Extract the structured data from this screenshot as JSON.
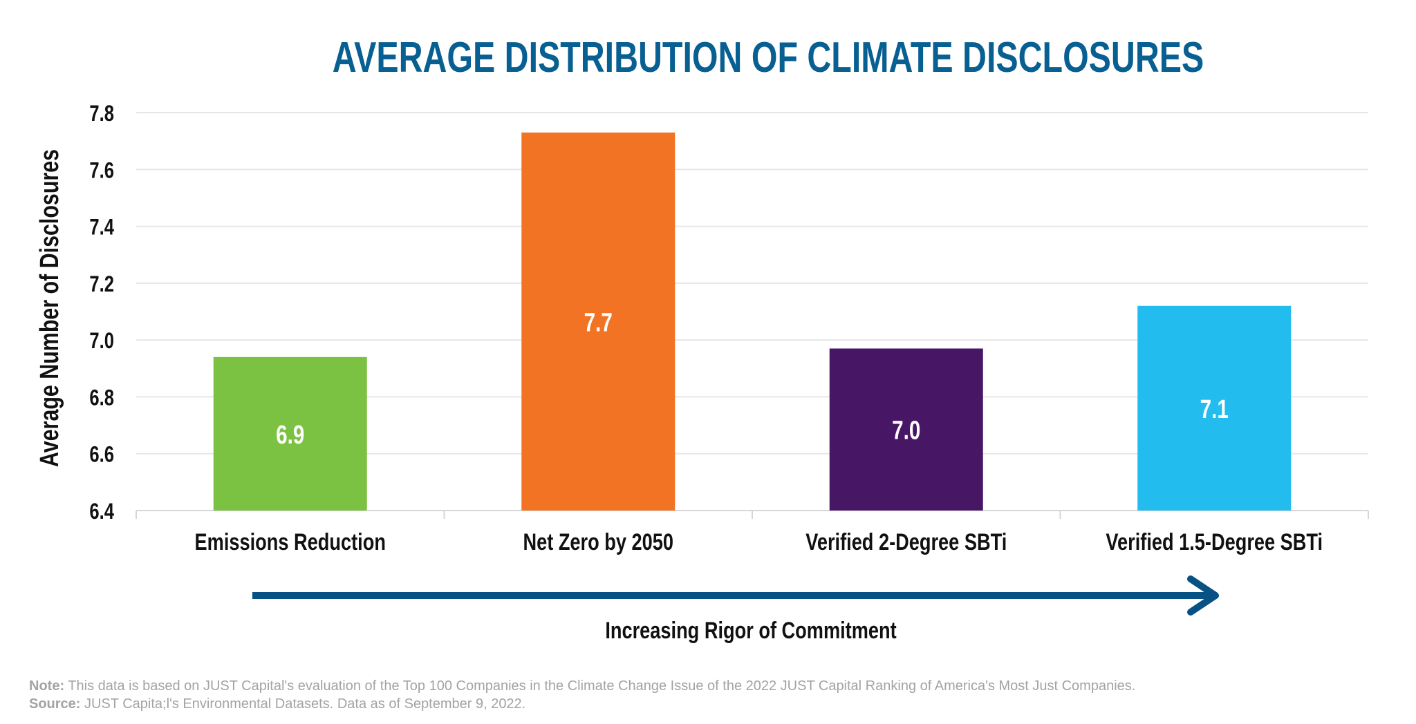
{
  "chart_data": {
    "type": "bar",
    "title": "AVERAGE DISTRIBUTION OF CLIMATE DISCLOSURES",
    "ylabel": "Average Number of Disclosures",
    "xlabel": "Increasing Rigor of Commitment",
    "categories": [
      "Emissions Reduction",
      "Net Zero by 2050",
      "Verified 2-Degree SBTi",
      "Verified 1.5-Degree SBTi"
    ],
    "values": [
      6.94,
      7.73,
      6.97,
      7.12
    ],
    "data_labels": [
      "6.9",
      "7.7",
      "7.0",
      "7.1"
    ],
    "colors": [
      "#7bc142",
      "#f37324",
      "#471766",
      "#22bcee"
    ],
    "ylim": [
      6.4,
      7.8
    ],
    "yticks": [
      "6.4",
      "6.6",
      "6.8",
      "7.0",
      "7.2",
      "7.4",
      "7.6",
      "7.8"
    ],
    "grid": true,
    "legend": "none",
    "title_color": "#075f92",
    "arrow_color": "#075184"
  },
  "footer": {
    "note_label": "Note:",
    "note_text": " This data is based on JUST Capital's evaluation of the Top 100 Companies in the Climate Change Issue of the 2022 JUST Capital Ranking of America's Most Just Companies.",
    "source_label": "Source:",
    "source_text": " JUST Capita;l's Environmental Datasets. Data as of September 9, 2022."
  }
}
